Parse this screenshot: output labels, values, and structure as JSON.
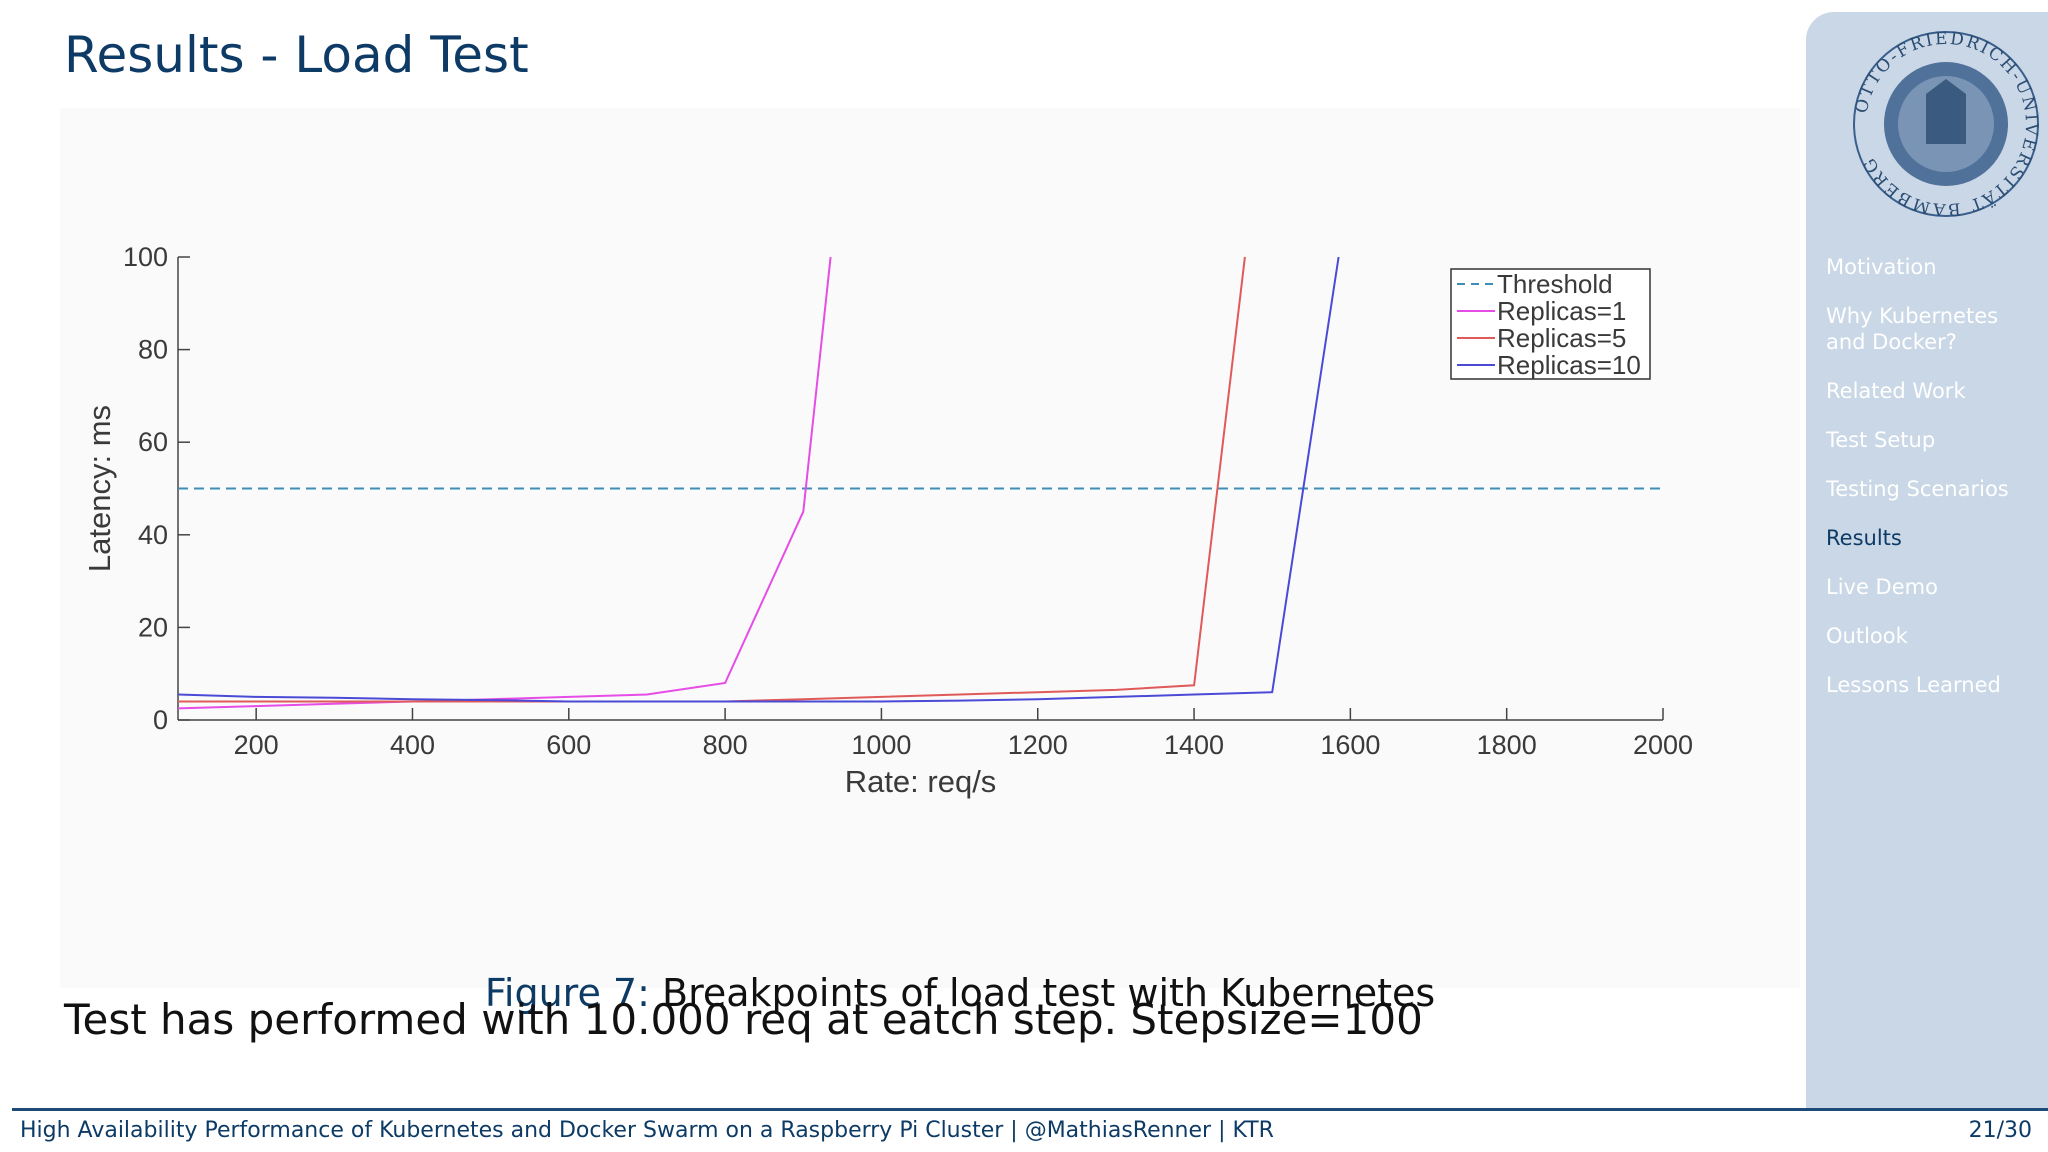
{
  "slide": {
    "title": "Results - Load Test",
    "body_text": "Test has performed with 10.000 req at eatch step. Stepsize=100"
  },
  "figure": {
    "label": "Figure 7:",
    "caption": "Breakpoints of load test with Kubernetes"
  },
  "sidebar": {
    "logo_text": "OTTO-FRIEDRICH-UNIVERSITÄT BAMBERG",
    "items": [
      {
        "label": "Motivation",
        "active": false
      },
      {
        "label": "Why Kubernetes and Docker?",
        "active": false
      },
      {
        "label": "Related Work",
        "active": false
      },
      {
        "label": "Test Setup",
        "active": false
      },
      {
        "label": "Testing Scenarios",
        "active": false
      },
      {
        "label": "Results",
        "active": true
      },
      {
        "label": "Live Demo",
        "active": false
      },
      {
        "label": "Outlook",
        "active": false
      },
      {
        "label": "Lessons Learned",
        "active": false
      }
    ]
  },
  "footer": {
    "text": "High Availability Performance of Kubernetes and Docker Swarm on a Raspberry Pi Cluster | @MathiasRenner | KTR",
    "page": "21/30"
  },
  "colors": {
    "title": "#0d3b66",
    "sidebar_bg": "#c9d7e6",
    "threshold": "#3d8fb8",
    "replicas1": "#e64ce6",
    "replicas5": "#e05a5a",
    "replicas10": "#4a4ad6"
  },
  "chart_data": {
    "type": "line",
    "xlabel": "Rate: req/s",
    "ylabel": "Latency: ms",
    "xlim": [
      100,
      2000
    ],
    "ylim": [
      0,
      100
    ],
    "xticks": [
      200,
      400,
      600,
      800,
      1000,
      1200,
      1400,
      1600,
      1800,
      2000
    ],
    "yticks": [
      0,
      20,
      40,
      60,
      80,
      100
    ],
    "legend_position": "top-right",
    "series": [
      {
        "name": "Threshold",
        "style": "dashed",
        "color": "#3d8fb8",
        "x": [
          100,
          2000
        ],
        "y": [
          50,
          50
        ]
      },
      {
        "name": "Replicas=1",
        "style": "solid",
        "color": "#e64ce6",
        "x": [
          100,
          200,
          300,
          400,
          500,
          600,
          700,
          800,
          900,
          935
        ],
        "y": [
          2.5,
          3,
          3.5,
          4,
          4.5,
          5,
          5.5,
          8,
          45,
          100
        ]
      },
      {
        "name": "Replicas=5",
        "style": "solid",
        "color": "#e05a5a",
        "x": [
          100,
          200,
          300,
          400,
          500,
          600,
          700,
          800,
          900,
          1000,
          1100,
          1200,
          1300,
          1400,
          1465
        ],
        "y": [
          4,
          4,
          4,
          4,
          4,
          4,
          4,
          4,
          4.5,
          5,
          5.5,
          6,
          6.5,
          7.5,
          100
        ]
      },
      {
        "name": "Replicas=10",
        "style": "solid",
        "color": "#4a4ad6",
        "x": [
          100,
          200,
          300,
          400,
          500,
          600,
          700,
          800,
          900,
          1000,
          1100,
          1200,
          1300,
          1400,
          1500,
          1585
        ],
        "y": [
          5.5,
          5,
          4.8,
          4.5,
          4.3,
          4,
          4,
          4,
          4,
          4,
          4.2,
          4.5,
          5,
          5.5,
          6,
          100
        ]
      }
    ]
  }
}
